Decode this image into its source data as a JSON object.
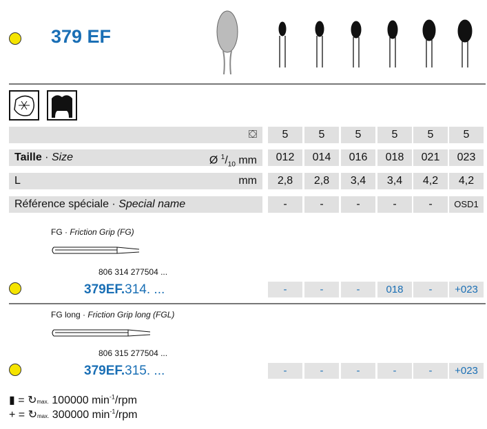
{
  "product": {
    "title": "379 EF",
    "color_dot": "#f5e400"
  },
  "table": {
    "columns": 6,
    "pack_qty": [
      "5",
      "5",
      "5",
      "5",
      "5",
      "5"
    ],
    "size_label_bold": "Taille",
    "size_label_sep": " · ",
    "size_label_italic": "Size",
    "size_unit_prefix": "Ø",
    "size_unit_frac_num": "1",
    "size_unit_frac_den": "10",
    "size_unit": "mm",
    "sizes": [
      "012",
      "014",
      "016",
      "018",
      "021",
      "023"
    ],
    "length_label": "L",
    "length_unit": "mm",
    "lengths": [
      "2,8",
      "2,8",
      "3,4",
      "3,4",
      "4,2",
      "4,2"
    ],
    "special_label": "Référence spéciale",
    "special_sep": " · ",
    "special_italic": "Special name",
    "special": [
      "-",
      "-",
      "-",
      "-",
      "-",
      "OSD1"
    ]
  },
  "shanks": [
    {
      "name": "FG",
      "sep": " · ",
      "name_italic": "Friction Grip (FG)",
      "code": "806 314 277504 ...",
      "order_bold": "379EF.",
      "order_rest": "314. ...",
      "avail": [
        "-",
        "-",
        "-",
        "018",
        "-",
        "+023"
      ]
    },
    {
      "name": "FG long",
      "sep": " · ",
      "name_italic": "Friction Grip long (FGL)",
      "code": "806 315 277504 ...",
      "order_bold": "379EF.",
      "order_rest": "315. ...",
      "avail": [
        "-",
        "-",
        "-",
        "-",
        "-",
        "+023"
      ]
    }
  ],
  "legend": [
    {
      "symbol": "▮",
      "text": "= ",
      "max": "max.",
      "speed": "100000 min",
      "sup": "-1",
      "unit": "/rpm"
    },
    {
      "symbol": "+",
      "text": "= ",
      "max": "max.",
      "speed": "300000 min",
      "sup": "-1",
      "unit": "/rpm"
    }
  ],
  "colors": {
    "accent": "#1a6fb5",
    "cell_bg": "#e0e0e0"
  }
}
